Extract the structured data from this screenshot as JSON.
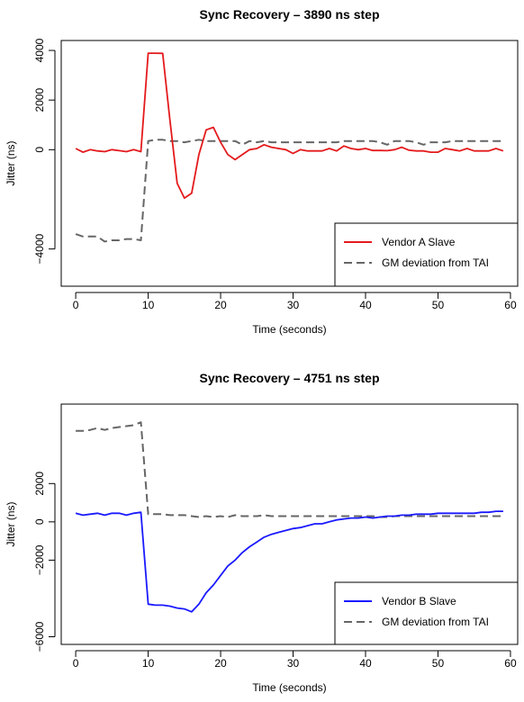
{
  "chart_data": [
    {
      "type": "line",
      "title": "Sync Recovery – 3890 ns step",
      "xlabel": "Time (seconds)",
      "ylabel": "Jitter (ns)",
      "xlim": [
        -2,
        61
      ],
      "ylim": [
        -5500,
        4400
      ],
      "xticks": [
        0,
        10,
        20,
        30,
        40,
        50,
        60
      ],
      "xtick_labels": [
        "0",
        "10",
        "20",
        "30",
        "40",
        "50",
        "60"
      ],
      "yticks": [
        -4000,
        0,
        2000,
        4000
      ],
      "ytick_labels": [
        "−4000",
        "0",
        "2000",
        "4000"
      ],
      "grid": false,
      "legend_position": "bottom-right",
      "x": [
        0,
        1,
        2,
        3,
        4,
        5,
        6,
        7,
        8,
        9,
        10,
        11,
        12,
        13,
        14,
        15,
        16,
        17,
        18,
        19,
        20,
        21,
        22,
        23,
        24,
        25,
        26,
        27,
        28,
        29,
        30,
        31,
        32,
        33,
        34,
        35,
        36,
        37,
        38,
        39,
        40,
        41,
        42,
        43,
        44,
        45,
        46,
        47,
        48,
        49,
        50,
        51,
        52,
        53,
        54,
        55,
        56,
        57,
        58,
        59
      ],
      "series": [
        {
          "name": "Vendor A Slave",
          "color": "#e41a1c",
          "dash": "solid",
          "values": [
            50,
            -100,
            0,
            -50,
            -80,
            0,
            -40,
            -80,
            0,
            -80,
            3890,
            3890,
            3880,
            1200,
            -1350,
            -1950,
            -1750,
            -200,
            800,
            900,
            300,
            -200,
            -400,
            -200,
            0,
            50,
            200,
            100,
            50,
            0,
            -150,
            0,
            -50,
            -50,
            -50,
            50,
            -50,
            150,
            50,
            0,
            50,
            -30,
            -30,
            -40,
            0,
            100,
            -20,
            -50,
            -50,
            -100,
            -100,
            50,
            0,
            -50,
            50,
            -50,
            -50,
            -50,
            50,
            -50
          ]
        },
        {
          "name": "GM deviation from TAI",
          "color": "#666666",
          "dash": "dashed",
          "values": [
            -3400,
            -3500,
            -3500,
            -3500,
            -3700,
            -3650,
            -3650,
            -3600,
            -3600,
            -3650,
            350,
            400,
            400,
            350,
            350,
            300,
            350,
            400,
            350,
            350,
            350,
            350,
            350,
            200,
            350,
            300,
            350,
            300,
            300,
            300,
            300,
            300,
            300,
            300,
            300,
            300,
            300,
            350,
            350,
            350,
            350,
            350,
            300,
            200,
            350,
            350,
            350,
            300,
            200,
            300,
            300,
            300,
            350,
            350,
            350,
            350,
            350,
            350,
            350,
            350
          ]
        }
      ]
    },
    {
      "type": "line",
      "title": "Sync Recovery – 4751 ns step",
      "xlabel": "Time (seconds)",
      "ylabel": "Jitter (ns)",
      "xlim": [
        -2,
        61
      ],
      "ylim": [
        -6400,
        6150
      ],
      "xticks": [
        0,
        10,
        20,
        30,
        40,
        50,
        60
      ],
      "xtick_labels": [
        "0",
        "10",
        "20",
        "30",
        "40",
        "50",
        "60"
      ],
      "yticks": [
        -6000,
        -2000,
        0,
        2000
      ],
      "ytick_labels": [
        "−6000",
        "−2000",
        "0",
        "2000"
      ],
      "grid": false,
      "legend_position": "bottom-right",
      "x": [
        0,
        1,
        2,
        3,
        4,
        5,
        6,
        7,
        8,
        9,
        10,
        11,
        12,
        13,
        14,
        15,
        16,
        17,
        18,
        19,
        20,
        21,
        22,
        23,
        24,
        25,
        26,
        27,
        28,
        29,
        30,
        31,
        32,
        33,
        34,
        35,
        36,
        37,
        38,
        39,
        40,
        41,
        42,
        43,
        44,
        45,
        46,
        47,
        48,
        49,
        50,
        51,
        52,
        53,
        54,
        55,
        56,
        57,
        58,
        59
      ],
      "series": [
        {
          "name": "Vendor B Slave",
          "color": "#1a1aff",
          "dash": "solid",
          "values": [
            450,
            350,
            400,
            450,
            350,
            450,
            450,
            350,
            450,
            500,
            -4300,
            -4350,
            -4350,
            -4400,
            -4500,
            -4550,
            -4700,
            -4300,
            -3700,
            -3300,
            -2800,
            -2300,
            -2000,
            -1600,
            -1300,
            -1050,
            -800,
            -650,
            -550,
            -450,
            -350,
            -300,
            -200,
            -100,
            -100,
            0,
            100,
            150,
            200,
            200,
            250,
            200,
            250,
            300,
            300,
            350,
            350,
            400,
            400,
            400,
            450,
            450,
            450,
            450,
            450,
            450,
            500,
            500,
            550,
            550
          ]
        },
        {
          "name": "GM deviation from TAI",
          "color": "#666666",
          "dash": "dashed",
          "values": [
            4750,
            4750,
            4800,
            4900,
            4800,
            4900,
            4950,
            5000,
            5050,
            5200,
            400,
            400,
            400,
            350,
            350,
            350,
            300,
            250,
            300,
            250,
            300,
            250,
            350,
            300,
            300,
            300,
            350,
            300,
            300,
            300,
            300,
            300,
            300,
            300,
            300,
            300,
            300,
            300,
            300,
            300,
            300,
            300,
            250,
            250,
            300,
            300,
            300,
            300,
            300,
            300,
            300,
            300,
            300,
            300,
            300,
            300,
            300,
            300,
            300,
            300
          ]
        }
      ]
    }
  ]
}
